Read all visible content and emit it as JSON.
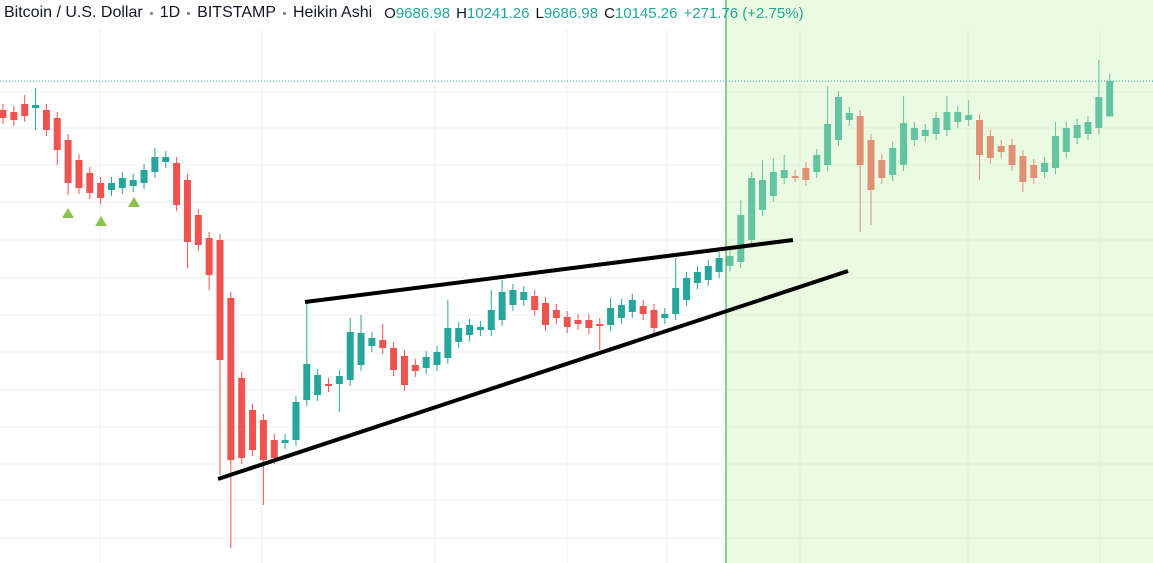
{
  "chart_data": {
    "type": "candlestick",
    "title": "Bitcoin / U.S. Dollar",
    "interval": "1D",
    "exchange": "BITSTAMP",
    "style": "Heikin Ashi",
    "ohlc_labels": [
      "O",
      "H",
      "L",
      "C"
    ],
    "change": "+271.76 (+2.75%)",
    "up_color": "#26a69a",
    "down_color": "#ef5350",
    "ylim": [
      3881,
      11200
    ],
    "open": [
      9770,
      9744,
      9848,
      9796,
      9770,
      9666,
      9380,
      9120,
      8951,
      8821,
      8730,
      8756,
      8782,
      8821,
      8964,
      9094,
      9081,
      8860,
      8405,
      8106,
      8080,
      7326,
      6286,
      5870,
      5740,
      5480,
      5441,
      5480,
      6000,
      6065,
      6208,
      6208,
      6260,
      6455,
      6702,
      6780,
      6676,
      6572,
      6455,
      6416,
      6455,
      6546,
      6754,
      6845,
      6910,
      6910,
      7040,
      7235,
      7300,
      7352,
      7261,
      7170,
      7079,
      7040,
      7040,
      6988,
      6975,
      7066,
      7144,
      7222,
      7170,
      7066,
      7118,
      7300,
      7521,
      7560,
      7664,
      7742,
      7794,
      8080,
      8470,
      8652,
      8886,
      8912,
      9016,
      8964,
      9055,
      9380,
      9640,
      9692,
      9380,
      9120,
      8925,
      9055,
      9380,
      9432,
      9458,
      9510,
      9614,
      9640,
      9640,
      9432,
      9302,
      9315,
      9172,
      9055,
      8964,
      9016,
      9224,
      9406,
      9458,
      9536,
      9686.98
    ],
    "high": [
      9848,
      9822,
      9965,
      10056,
      9848,
      9744,
      9458,
      9198,
      9029,
      8899,
      8899,
      8964,
      8938,
      9068,
      9276,
      9237,
      9159,
      8938,
      8483,
      8184,
      8158,
      7404,
      6364,
      5948,
      5818,
      5558,
      5558,
      6052,
      7300,
      6403,
      6286,
      6390,
      7066,
      7105,
      6884,
      6988,
      6754,
      6650,
      6533,
      6637,
      6702,
      7300,
      7014,
      7053,
      7027,
      7430,
      7560,
      7508,
      7482,
      7430,
      7339,
      7248,
      7157,
      7118,
      7118,
      7066,
      7326,
      7313,
      7378,
      7300,
      7248,
      7196,
      7846,
      7664,
      7742,
      7820,
      7924,
      7950,
      8600,
      8964,
      9120,
      9146,
      9185,
      8990,
      9094,
      9263,
      10082,
      10017,
      9809,
      9770,
      9458,
      9198,
      9354,
      9952,
      9614,
      9588,
      9744,
      9952,
      9822,
      9900,
      9718,
      9510,
      9380,
      9393,
      9250,
      9133,
      9159,
      9614,
      9614,
      9653,
      9692,
      10420,
      10241.26
    ],
    "low": [
      9588,
      9562,
      9614,
      9510,
      9432,
      9055,
      8665,
      8678,
      8613,
      8548,
      8652,
      8678,
      8704,
      8743,
      8886,
      9016,
      8457,
      7716,
      7937,
      7430,
      5025,
      4076,
      5168,
      5272,
      4635,
      5168,
      5363,
      5402,
      5922,
      5987,
      6104,
      5844,
      6182,
      6377,
      6624,
      6598,
      6312,
      6117,
      6299,
      6338,
      6377,
      6468,
      6676,
      6767,
      6832,
      6832,
      6962,
      7157,
      7222,
      7092,
      6897,
      6988,
      6871,
      6910,
      6858,
      6650,
      6897,
      6988,
      7066,
      7040,
      6858,
      6988,
      7040,
      7222,
      7443,
      7482,
      7586,
      7664,
      7716,
      8002,
      8392,
      8574,
      8808,
      8834,
      8782,
      8886,
      8977,
      9302,
      9562,
      8184,
      8275,
      8808,
      8847,
      8977,
      9302,
      9354,
      9380,
      9432,
      9536,
      9562,
      8860,
      9068,
      9146,
      8977,
      8704,
      8808,
      8886,
      8938,
      9146,
      9328,
      9380,
      9458,
      9686.98
    ],
    "close": [
      9666,
      9640,
      9692,
      9835,
      9510,
      9250,
      8821,
      8756,
      8691,
      8626,
      8821,
      8886,
      8860,
      8990,
      9159,
      9159,
      8535,
      8054,
      8015,
      7625,
      6520,
      5220,
      5246,
      5350,
      5220,
      5246,
      5480,
      5974,
      6468,
      6325,
      6182,
      6312,
      6884,
      6871,
      6806,
      6676,
      6390,
      6195,
      6377,
      6559,
      6624,
      6936,
      6936,
      6975,
      6949,
      7170,
      7404,
      7430,
      7404,
      7170,
      6975,
      7066,
      6949,
      6988,
      6936,
      6962,
      7196,
      7235,
      7300,
      7118,
      6936,
      7118,
      7456,
      7586,
      7664,
      7742,
      7846,
      7872,
      8405,
      8886,
      8860,
      8964,
      8990,
      8886,
      8860,
      9185,
      9588,
      9939,
      9731,
      9055,
      8730,
      8886,
      9276,
      9601,
      9536,
      9510,
      9666,
      9744,
      9744,
      9705,
      9185,
      9146,
      9224,
      9055,
      8834,
      8886,
      9081,
      9432,
      9536,
      9575,
      9614,
      9939,
      10145.26
    ]
  }
}
